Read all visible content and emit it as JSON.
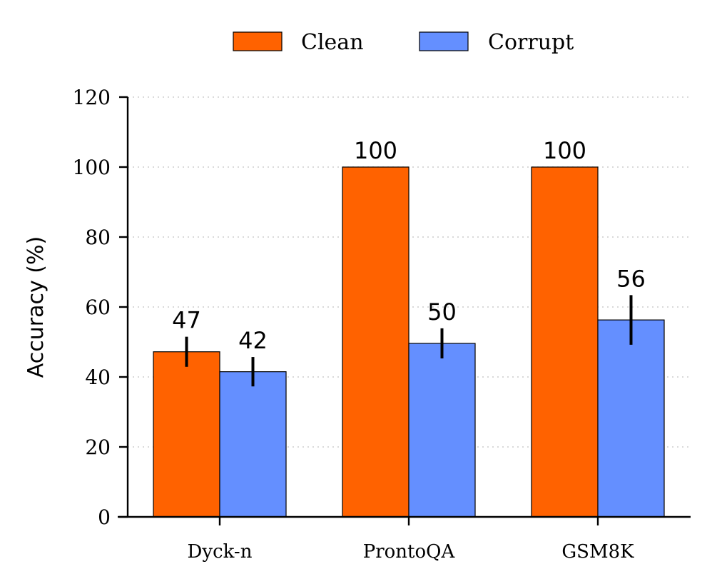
{
  "chart_data": {
    "type": "bar",
    "title": "",
    "xlabel": "",
    "ylabel": "Accuracy (%)",
    "ylim": [
      0,
      120
    ],
    "yticks": [
      0,
      20,
      40,
      60,
      80,
      100,
      120
    ],
    "grid": "horizontal dotted",
    "legend_position": "top-center",
    "categories": [
      "Dyck-n",
      "ProntoQA",
      "GSM8K"
    ],
    "series": [
      {
        "name": "Clean",
        "color": "#FF6200",
        "values": [
          47.2,
          100,
          100
        ],
        "errors": [
          4.3,
          0,
          0
        ],
        "labels": [
          "47",
          "100",
          "100"
        ]
      },
      {
        "name": "Corrupt",
        "color": "#648FFF",
        "values": [
          41.5,
          49.6,
          56.3
        ],
        "errors": [
          4.2,
          4.3,
          7.1
        ],
        "labels": [
          "42",
          "50",
          "56"
        ]
      }
    ]
  }
}
